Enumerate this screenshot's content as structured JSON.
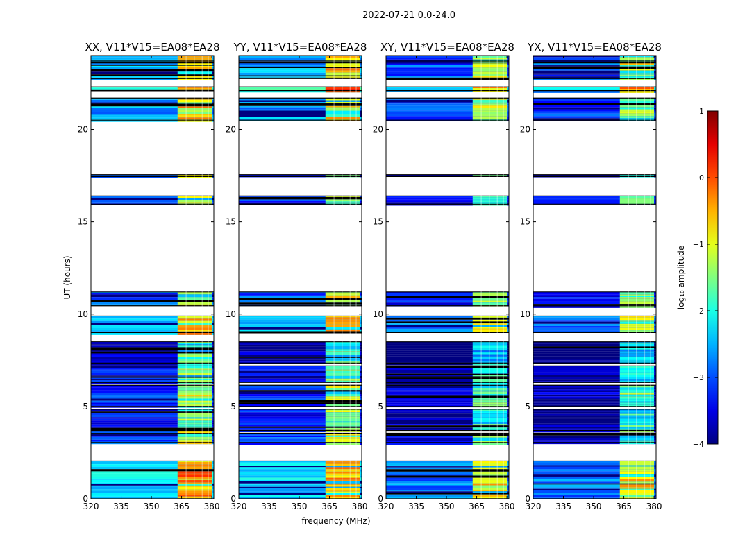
{
  "chart_data": {
    "type": "heatmap",
    "title": "2022-07-21 0.0-24.0",
    "xlabel": "frequency (MHz)",
    "ylabel": "UT (hours)",
    "xlim": [
      320,
      381
    ],
    "ylim": [
      0,
      24
    ],
    "x_ticks": [
      320,
      335,
      350,
      365,
      380
    ],
    "x_tick_labels": [
      "320",
      "335",
      "350",
      "365",
      "380"
    ],
    "y_ticks": [
      0,
      5,
      10,
      15,
      20
    ],
    "y_tick_labels": [
      "0",
      "5",
      "10",
      "15",
      "20"
    ],
    "panels": [
      {
        "title": "XX, V11*V15=EA08*EA28",
        "polarization": "XX"
      },
      {
        "title": "YY, V11*V15=EA08*EA28",
        "polarization": "YY"
      },
      {
        "title": "XY, V11*V15=EA08*EA28",
        "polarization": "XY"
      },
      {
        "title": "YX, V11*V15=EA08*EA28",
        "polarization": "YX"
      }
    ],
    "colorbar": {
      "label": "log₁₀ amplitude",
      "range": [
        -4,
        1
      ],
      "ticks": [
        1,
        0,
        -1,
        -2,
        -3,
        -4
      ],
      "tick_labels": [
        "1",
        "0",
        "−1",
        "−2",
        "−3",
        "−4"
      ],
      "colormap": "jet"
    },
    "rfi_band_mhz": [
      363,
      380
    ],
    "data_blocks_ut_hours": [
      {
        "start": 0.0,
        "end": 2.05,
        "level": -2.3
      },
      {
        "start": 3.05,
        "end": 3.55,
        "level": -3.0
      },
      {
        "start": 3.7,
        "end": 4.85,
        "level": -3.3
      },
      {
        "start": 5.0,
        "end": 6.15,
        "level": -3.2
      },
      {
        "start": 6.3,
        "end": 7.2,
        "level": -3.4
      },
      {
        "start": 7.35,
        "end": 8.5,
        "level": -3.7
      },
      {
        "start": 9.0,
        "end": 9.9,
        "level": -2.4
      },
      {
        "start": 10.45,
        "end": 11.2,
        "level": -2.9
      },
      {
        "start": 15.95,
        "end": 16.4,
        "level": -3.0
      },
      {
        "start": 17.45,
        "end": 17.55,
        "level": -3.0
      },
      {
        "start": 20.5,
        "end": 21.7,
        "level": -2.6
      },
      {
        "start": 22.1,
        "end": 22.3,
        "level": -2.0
      },
      {
        "start": 22.75,
        "end": 23.6,
        "level": -2.5
      },
      {
        "start": 23.7,
        "end": 24.0,
        "level": -2.8
      }
    ]
  }
}
